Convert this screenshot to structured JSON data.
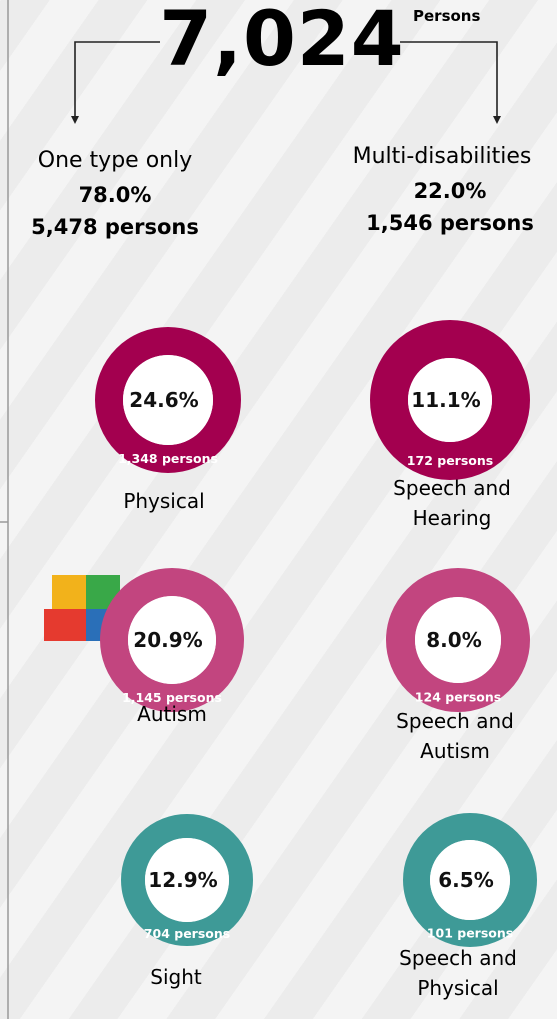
{
  "header": {
    "total": "7,024",
    "unit": "Persons"
  },
  "groups": [
    {
      "title": "One type only",
      "percent": "78.0%",
      "persons": "5,478 persons",
      "items": [
        {
          "percent": "24.6%",
          "persons": "1,348 persons",
          "name": "Physical",
          "color": "#a3004f"
        },
        {
          "percent": "20.9%",
          "persons": "1,145 persons",
          "name": "Autism",
          "color": "#c2457f"
        },
        {
          "percent": "12.9%",
          "persons": "704 persons",
          "name": "Sight",
          "color": "#3e9a97"
        }
      ]
    },
    {
      "title": "Multi-disabilities",
      "percent": "22.0%",
      "persons": "1,546 persons",
      "items": [
        {
          "percent": "11.1%",
          "persons": "172 persons",
          "name": "Speech and Hearing",
          "color": "#a3004f"
        },
        {
          "percent": "8.0%",
          "persons": "124 persons",
          "name": "Speech and Autism",
          "color": "#c2457f"
        },
        {
          "percent": "6.5%",
          "persons": "101 persons",
          "name": "Speech and Physical",
          "color": "#3e9a97"
        }
      ]
    }
  ]
}
